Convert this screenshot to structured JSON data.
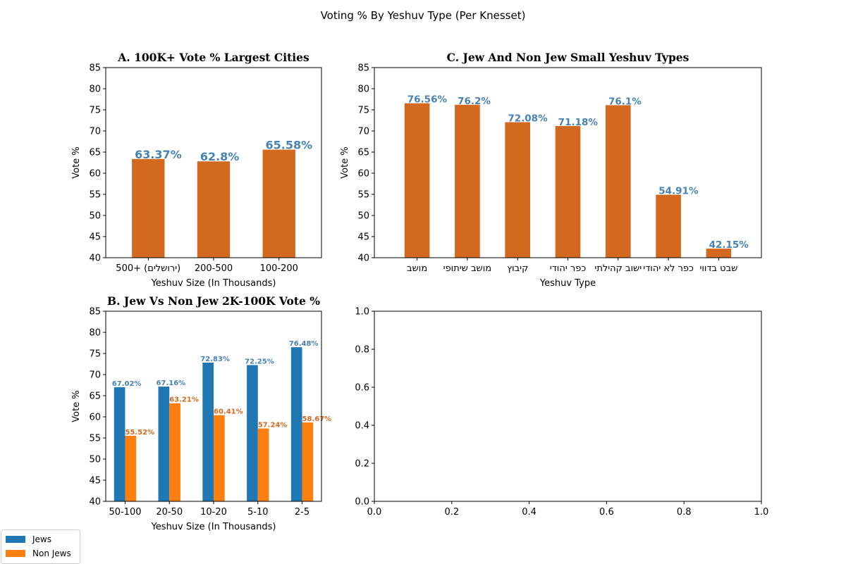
{
  "suptitle": "Voting % By Yeshuv Type (Per Knesset)",
  "chart_data": [
    {
      "id": "A",
      "type": "bar",
      "title": "A. 100K+ Vote % Largest Cities",
      "xlabel": "Yeshuv Size (In Thousands)",
      "ylabel": "Vote %",
      "ylim": [
        40,
        85
      ],
      "yticks": [
        40,
        45,
        50,
        55,
        60,
        65,
        70,
        75,
        80,
        85
      ],
      "categories": [
        "500+ (ירושלים)",
        "200-500",
        "100-200"
      ],
      "values": [
        63.37,
        62.8,
        65.58
      ],
      "data_labels": [
        "63.37%",
        "62.8%",
        "65.58%"
      ],
      "bar_color": "#d2691e",
      "label_color": "#4682b4"
    },
    {
      "id": "C",
      "type": "bar",
      "title": "C. Jew And Non Jew Small Yeshuv Types",
      "xlabel": "Yeshuv Type",
      "ylabel": "Vote %",
      "ylim": [
        40,
        85
      ],
      "yticks": [
        40,
        45,
        50,
        55,
        60,
        65,
        70,
        75,
        80,
        85
      ],
      "categories": [
        "מושב",
        "מושב שיתופי",
        "קיבוץ",
        "כפר יהודי",
        "ישוב קהילתי",
        "כפר לא יהודי",
        "שבט בדווי"
      ],
      "values": [
        76.56,
        76.2,
        72.08,
        71.18,
        76.1,
        54.91,
        42.15
      ],
      "data_labels": [
        "76.56%",
        "76.2%",
        "72.08%",
        "71.18%",
        "76.1%",
        "54.91%",
        "42.15%"
      ],
      "bar_color": "#d2691e",
      "label_color": "#4682b4"
    },
    {
      "id": "B",
      "type": "bar",
      "title": "B. Jew Vs Non Jew 2K-100K Vote %",
      "xlabel": "Yeshuv Size (In Thousands)",
      "ylabel": "Vote %",
      "ylim": [
        40,
        85
      ],
      "yticks": [
        40,
        45,
        50,
        55,
        60,
        65,
        70,
        75,
        80,
        85
      ],
      "categories": [
        "50-100",
        "20-50",
        "10-20",
        "5-10",
        "2-5"
      ],
      "series": [
        {
          "name": "Jews",
          "color": "#1f77b4",
          "label_color": "#4682b4",
          "values": [
            67.02,
            67.16,
            72.83,
            72.25,
            76.48
          ],
          "data_labels": [
            "67.02%",
            "67.16%",
            "72.83%",
            "72.25%",
            "76.48%"
          ]
        },
        {
          "name": "Non Jews",
          "color": "#ff7f0e",
          "label_color": "#d2691e",
          "values": [
            55.52,
            63.21,
            60.41,
            57.24,
            58.67
          ],
          "data_labels": [
            "55.52%",
            "63.21%",
            "60.41%",
            "57.24%",
            "58.67%"
          ]
        }
      ],
      "legend_position": "lower-left"
    },
    {
      "id": "empty",
      "type": "line",
      "xlim": [
        0,
        1
      ],
      "ylim": [
        0,
        1
      ],
      "xticks": [
        "0.0",
        "0.2",
        "0.4",
        "0.6",
        "0.8",
        "1.0"
      ],
      "yticks": [
        "0.0",
        "0.2",
        "0.4",
        "0.6",
        "0.8",
        "1.0"
      ],
      "series": []
    }
  ],
  "legend": {
    "items": [
      {
        "label": "Jews",
        "color": "#1f77b4"
      },
      {
        "label": "Non Jews",
        "color": "#ff7f0e"
      }
    ]
  }
}
